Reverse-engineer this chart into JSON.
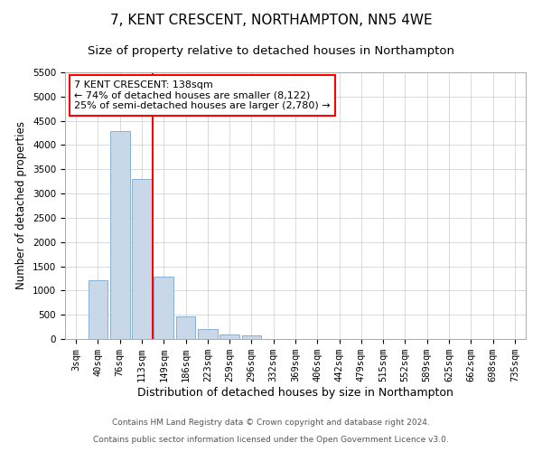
{
  "title": "7, KENT CRESCENT, NORTHAMPTON, NN5 4WE",
  "subtitle": "Size of property relative to detached houses in Northampton",
  "xlabel": "Distribution of detached houses by size in Northampton",
  "ylabel": "Number of detached properties",
  "footnote1": "Contains HM Land Registry data © Crown copyright and database right 2024.",
  "footnote2": "Contains public sector information licensed under the Open Government Licence v3.0.",
  "categories": [
    "3sqm",
    "40sqm",
    "76sqm",
    "113sqm",
    "149sqm",
    "186sqm",
    "223sqm",
    "259sqm",
    "296sqm",
    "332sqm",
    "369sqm",
    "406sqm",
    "442sqm",
    "479sqm",
    "515sqm",
    "552sqm",
    "589sqm",
    "625sqm",
    "662sqm",
    "698sqm",
    "735sqm"
  ],
  "values": [
    0,
    1220,
    4280,
    3300,
    1280,
    470,
    200,
    90,
    70,
    0,
    0,
    0,
    0,
    0,
    0,
    0,
    0,
    0,
    0,
    0,
    0
  ],
  "bar_color": "#c8d8e8",
  "bar_edge_color": "#7aa8c8",
  "vline_x_index": 3,
  "vline_color": "red",
  "annotation_text": "7 KENT CRESCENT: 138sqm\n← 74% of detached houses are smaller (8,122)\n25% of semi-detached houses are larger (2,780) →",
  "annotation_box_color": "white",
  "annotation_box_edge_color": "red",
  "ylim": [
    0,
    5500
  ],
  "yticks": [
    0,
    500,
    1000,
    1500,
    2000,
    2500,
    3000,
    3500,
    4000,
    4500,
    5000,
    5500
  ],
  "background_color": "white",
  "grid_color": "#cccccc",
  "title_fontsize": 11,
  "subtitle_fontsize": 9.5,
  "xlabel_fontsize": 9,
  "ylabel_fontsize": 8.5,
  "tick_fontsize": 7.5,
  "annotation_fontsize": 8,
  "footnote_fontsize": 6.5
}
